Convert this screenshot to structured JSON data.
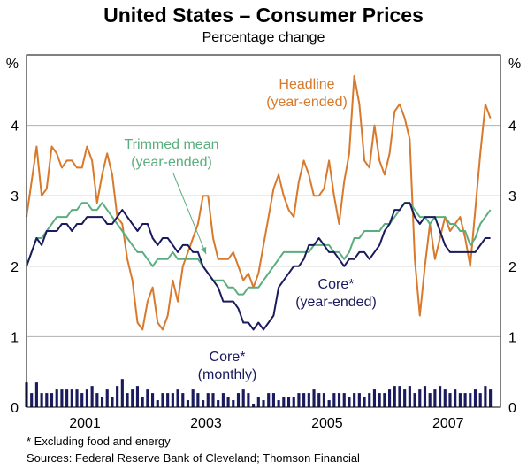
{
  "header": {
    "title": "United States – Consumer Prices",
    "subtitle": "Percentage change"
  },
  "footer": {
    "footnote": "*   Excluding food and energy",
    "sources": "Sources: Federal Reserve Bank of Cleveland; Thomson Financial"
  },
  "chart_data": {
    "type": "line",
    "y_unit_left": "%",
    "y_unit_right": "%",
    "ylim": [
      0,
      5
    ],
    "yticks": [
      0,
      1,
      2,
      3,
      4
    ],
    "xlim": [
      1999.67,
      2007.5
    ],
    "xtick_labels": [
      "2001",
      "2003",
      "2005",
      "2007"
    ],
    "xticks_labeled": [
      2001.0,
      2003.0,
      2005.0,
      2007.0
    ],
    "grid": "horizontal",
    "annotations": [
      {
        "series": "headline",
        "lines": [
          "Headline",
          "(year-ended)"
        ]
      },
      {
        "series": "trimmed",
        "lines": [
          "Trimmed mean",
          "(year-ended)"
        ],
        "arrow": true
      },
      {
        "series": "core",
        "lines": [
          "Core*",
          "(year-ended)"
        ]
      },
      {
        "series": "core_monthly",
        "lines": [
          "Core*",
          "(monthly)"
        ]
      }
    ],
    "colors": {
      "headline": "#D8792B",
      "trimmed": "#5AAE7D",
      "core": "#1A1A5E",
      "core_monthly": "#1A1A5E",
      "grid": "#b0b0b0"
    },
    "series": [
      {
        "key": "headline",
        "name": "Headline (year-ended)",
        "x_start": 1999.67,
        "step": 0.0833,
        "values": [
          2.7,
          3.2,
          3.7,
          3.0,
          3.1,
          3.7,
          3.6,
          3.4,
          3.5,
          3.5,
          3.4,
          3.4,
          3.7,
          3.5,
          2.9,
          3.3,
          3.6,
          3.3,
          2.7,
          2.6,
          2.1,
          1.8,
          1.2,
          1.1,
          1.5,
          1.7,
          1.2,
          1.1,
          1.3,
          1.8,
          1.5,
          2.0,
          2.2,
          2.4,
          2.6,
          3.0,
          3.0,
          2.4,
          2.1,
          2.1,
          2.1,
          2.2,
          2.0,
          1.8,
          1.9,
          1.7,
          1.9,
          2.3,
          2.7,
          3.1,
          3.3,
          3.0,
          2.8,
          2.7,
          3.2,
          3.5,
          3.3,
          3.0,
          3.0,
          3.1,
          3.5,
          3.0,
          2.6,
          3.2,
          3.6,
          4.7,
          4.3,
          3.5,
          3.4,
          4.0,
          3.5,
          3.3,
          3.6,
          4.2,
          4.3,
          4.1,
          3.8,
          2.1,
          1.3,
          2.0,
          2.6,
          2.1,
          2.4,
          2.7,
          2.5,
          2.6,
          2.7,
          2.4,
          2.0,
          2.8,
          3.6,
          4.3,
          4.1
        ]
      },
      {
        "key": "trimmed",
        "name": "Trimmed mean (year-ended)",
        "x_start": 1999.67,
        "step": 0.0833,
        "values": [
          2.0,
          2.2,
          2.4,
          2.4,
          2.5,
          2.6,
          2.7,
          2.7,
          2.7,
          2.8,
          2.8,
          2.9,
          2.9,
          2.8,
          2.8,
          2.9,
          2.8,
          2.7,
          2.6,
          2.5,
          2.4,
          2.3,
          2.2,
          2.2,
          2.1,
          2.0,
          2.1,
          2.1,
          2.1,
          2.2,
          2.1,
          2.1,
          2.1,
          2.1,
          2.1,
          2.0,
          1.9,
          1.8,
          1.8,
          1.8,
          1.7,
          1.7,
          1.6,
          1.6,
          1.7,
          1.7,
          1.7,
          1.8,
          1.9,
          2.0,
          2.1,
          2.2,
          2.2,
          2.2,
          2.2,
          2.2,
          2.2,
          2.3,
          2.3,
          2.3,
          2.3,
          2.2,
          2.2,
          2.1,
          2.2,
          2.4,
          2.4,
          2.5,
          2.5,
          2.5,
          2.5,
          2.6,
          2.6,
          2.7,
          2.8,
          2.9,
          2.9,
          2.8,
          2.7,
          2.7,
          2.6,
          2.7,
          2.7,
          2.7,
          2.6,
          2.6,
          2.5,
          2.5,
          2.3,
          2.4,
          2.6,
          2.7,
          2.8
        ]
      },
      {
        "key": "core",
        "name": "Core* (year-ended)",
        "x_start": 1999.67,
        "step": 0.0833,
        "values": [
          2.0,
          2.2,
          2.4,
          2.3,
          2.5,
          2.5,
          2.5,
          2.6,
          2.6,
          2.5,
          2.6,
          2.6,
          2.7,
          2.7,
          2.7,
          2.7,
          2.6,
          2.6,
          2.7,
          2.8,
          2.7,
          2.6,
          2.5,
          2.6,
          2.6,
          2.4,
          2.3,
          2.4,
          2.4,
          2.3,
          2.2,
          2.3,
          2.3,
          2.2,
          2.2,
          2.0,
          1.9,
          1.8,
          1.7,
          1.5,
          1.5,
          1.5,
          1.4,
          1.2,
          1.2,
          1.1,
          1.2,
          1.1,
          1.2,
          1.3,
          1.7,
          1.8,
          1.9,
          2.0,
          2.0,
          2.1,
          2.3,
          2.3,
          2.4,
          2.3,
          2.2,
          2.2,
          2.1,
          2.0,
          2.1,
          2.1,
          2.2,
          2.2,
          2.1,
          2.2,
          2.3,
          2.5,
          2.6,
          2.8,
          2.8,
          2.9,
          2.9,
          2.7,
          2.6,
          2.7,
          2.7,
          2.7,
          2.5,
          2.3,
          2.2,
          2.2,
          2.2,
          2.2,
          2.2,
          2.2,
          2.3,
          2.4,
          2.4
        ]
      },
      {
        "key": "core_monthly",
        "name": "Core* (monthly)",
        "x_start": 1999.67,
        "step": 0.0833,
        "values": [
          0.35,
          0.2,
          0.35,
          0.2,
          0.2,
          0.2,
          0.25,
          0.25,
          0.25,
          0.25,
          0.25,
          0.2,
          0.25,
          0.3,
          0.2,
          0.15,
          0.25,
          0.15,
          0.3,
          0.4,
          0.2,
          0.25,
          0.3,
          0.15,
          0.25,
          0.2,
          0.1,
          0.2,
          0.2,
          0.2,
          0.25,
          0.2,
          0.1,
          0.25,
          0.2,
          0.1,
          0.2,
          0.2,
          0.1,
          0.2,
          0.15,
          0.1,
          0.2,
          0.25,
          0.2,
          0.05,
          0.15,
          0.1,
          0.2,
          0.2,
          0.1,
          0.15,
          0.15,
          0.15,
          0.2,
          0.2,
          0.2,
          0.25,
          0.2,
          0.2,
          0.1,
          0.2,
          0.2,
          0.2,
          0.15,
          0.2,
          0.2,
          0.15,
          0.2,
          0.25,
          0.2,
          0.2,
          0.25,
          0.3,
          0.3,
          0.25,
          0.3,
          0.2,
          0.25,
          0.3,
          0.2,
          0.25,
          0.3,
          0.25,
          0.2,
          0.25,
          0.2,
          0.2,
          0.2,
          0.25,
          0.2,
          0.3,
          0.25
        ]
      }
    ]
  }
}
